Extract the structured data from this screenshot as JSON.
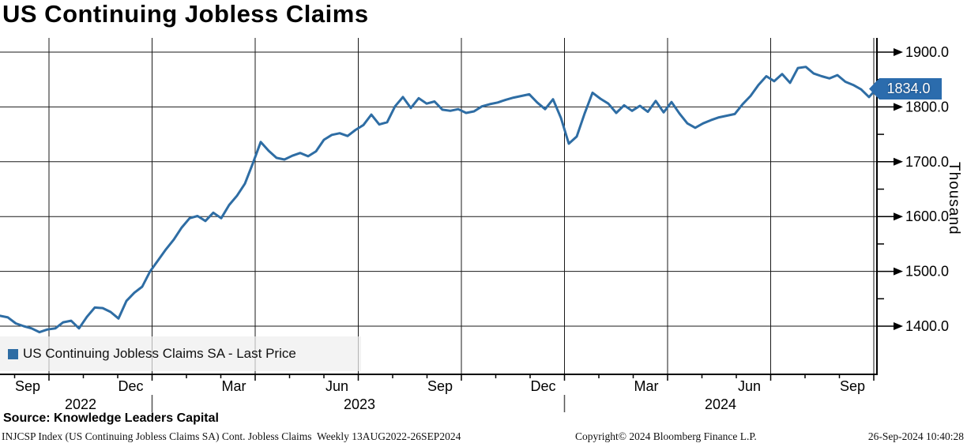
{
  "title": "US Continuing Jobless Claims",
  "legend": {
    "label": "US Continuing Jobless Claims SA - Last Price",
    "swatch_color": "#2e6da4"
  },
  "last_price_badge": {
    "value": "1834.0",
    "color": "#2b6cad"
  },
  "y_axis": {
    "unit_label": "Thousand",
    "tick_labels": [
      "1900.0",
      "1800.0",
      "1700.0",
      "1600.0",
      "1500.0",
      "1400.0"
    ],
    "tick_values": [
      1900,
      1800,
      1700,
      1600,
      1500,
      1400
    ],
    "minor_tick_values": [
      1850,
      1750,
      1650,
      1550,
      1450
    ]
  },
  "x_axis": {
    "month_ticks": [
      "Sep",
      "Dec",
      "Mar",
      "Jun",
      "Sep",
      "Dec",
      "Mar",
      "Jun",
      "Sep"
    ],
    "year_labels": [
      "2022",
      "2023",
      "2024"
    ]
  },
  "source_row": {
    "prefix": "Source:",
    "text": " Knowledge Leaders Capital"
  },
  "footer": {
    "left": "INJCSP Index (US Continuing Jobless Claims SA) Cont. Jobless Claims  Weekly 13AUG2022-26SEP2024",
    "center": "Copyright© 2024 Bloomberg Finance L.P.",
    "right": "26-Sep-2024 10:40:28"
  },
  "chart_data": {
    "type": "line",
    "title": "US Continuing Jobless Claims",
    "ylabel": "Thousand",
    "ylim": [
      1380,
      1920
    ],
    "grid": true,
    "legend_position": "bottom-left",
    "x_tick_labels": [
      "Sep",
      "Dec",
      "Mar",
      "Jun",
      "Sep",
      "Dec",
      "Mar",
      "Jun",
      "Sep"
    ],
    "year_labels": [
      "2022",
      "2023",
      "2024"
    ],
    "y_tick_values": [
      1900,
      1800,
      1700,
      1600,
      1500,
      1400
    ],
    "frequency": "Weekly",
    "range_start": "13AUG2022",
    "range_end": "26SEP2024",
    "last_value": 1834.0,
    "series": [
      {
        "name": "US Continuing Jobless Claims SA - Last Price",
        "color": "#2e6da4",
        "values": [
          1419,
          1416,
          1405,
          1400,
          1396,
          1389,
          1394,
          1396,
          1407,
          1410,
          1396,
          1417,
          1434,
          1433,
          1426,
          1414,
          1446,
          1461,
          1472,
          1500,
          1520,
          1540,
          1558,
          1580,
          1597,
          1601,
          1592,
          1607,
          1597,
          1621,
          1638,
          1660,
          1697,
          1736,
          1720,
          1707,
          1704,
          1711,
          1716,
          1710,
          1719,
          1740,
          1749,
          1752,
          1747,
          1758,
          1767,
          1786,
          1768,
          1772,
          1801,
          1818,
          1798,
          1816,
          1806,
          1810,
          1795,
          1793,
          1796,
          1789,
          1792,
          1801,
          1805,
          1808,
          1813,
          1817,
          1820,
          1823,
          1808,
          1796,
          1814,
          1780,
          1733,
          1746,
          1788,
          1826,
          1815,
          1806,
          1789,
          1803,
          1793,
          1802,
          1791,
          1811,
          1790,
          1809,
          1788,
          1770,
          1762,
          1770,
          1776,
          1781,
          1784,
          1787,
          1805,
          1820,
          1840,
          1856,
          1847,
          1860,
          1844,
          1871,
          1873,
          1861,
          1856,
          1852,
          1858,
          1846,
          1840,
          1832,
          1818,
          1834
        ]
      }
    ]
  }
}
